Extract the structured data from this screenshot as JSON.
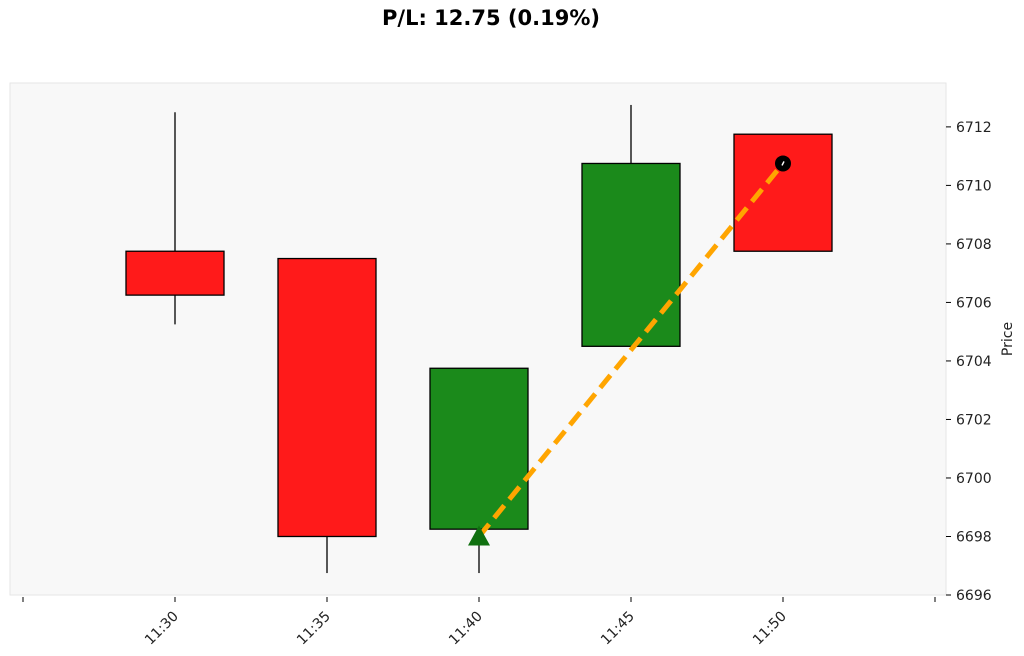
{
  "chart_data": {
    "type": "candlestick",
    "title": "P/L: 12.75 (0.19%)",
    "xlabel": "",
    "ylabel": "Price",
    "y_axis_side": "right",
    "ylim": [
      6696,
      6713.5
    ],
    "yticks": [
      6696,
      6698,
      6700,
      6702,
      6704,
      6706,
      6708,
      6710,
      6712
    ],
    "xticks": [
      "11:30",
      "11:35",
      "11:40",
      "11:45",
      "11:50"
    ],
    "grid": false,
    "candles": [
      {
        "time": "11:30",
        "open": 6707.75,
        "high": 6712.5,
        "low": 6705.25,
        "close": 6706.25
      },
      {
        "time": "11:35",
        "open": 6707.5,
        "high": 6707.5,
        "low": 6696.75,
        "close": 6698.0
      },
      {
        "time": "11:40",
        "open": 6698.25,
        "high": 6703.75,
        "low": 6696.75,
        "close": 6703.75
      },
      {
        "time": "11:45",
        "open": 6704.5,
        "high": 6712.75,
        "low": 6704.5,
        "close": 6710.75
      },
      {
        "time": "11:50",
        "open": 6711.75,
        "high": 6711.75,
        "low": 6707.75,
        "close": 6707.75
      }
    ],
    "trade": {
      "entry": {
        "time": "11:40",
        "price": 6698.0,
        "marker": "triangle-up"
      },
      "exit": {
        "time": "11:50",
        "price": 6710.75,
        "marker": "circle"
      }
    },
    "colors": {
      "up": "#1b8a1b",
      "down": "#ff1a1a",
      "trade_line": "#ffa500",
      "entry_marker": "#107010",
      "exit_marker": "#000000",
      "plot_background": "#f8f8f8"
    }
  }
}
